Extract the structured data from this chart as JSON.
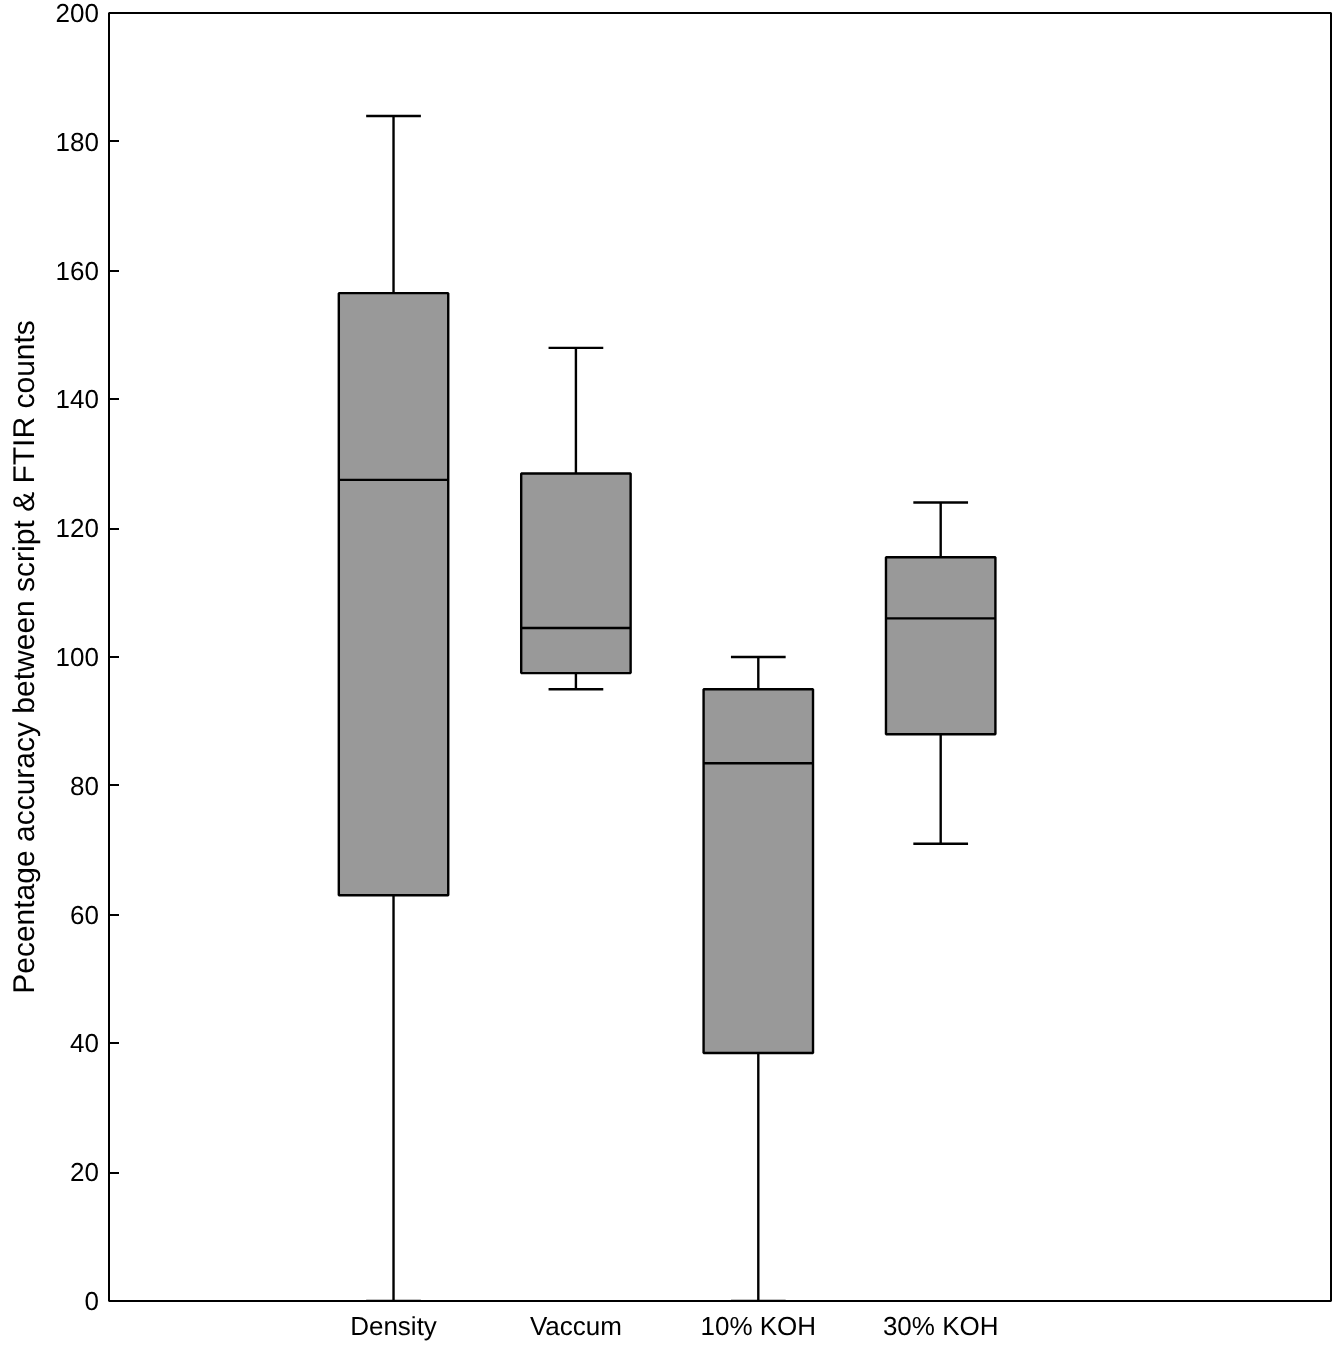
{
  "chart_data": {
    "type": "box",
    "ylabel": "Pecentage accuracy between script & FTIR counts",
    "categories": [
      "Density",
      "Vaccum",
      "10% KOH",
      "30% KOH"
    ],
    "color": "#999999",
    "ylim": [
      0,
      200
    ],
    "yticks": [
      0,
      20,
      40,
      60,
      80,
      100,
      120,
      140,
      160,
      180,
      200
    ],
    "grid": false,
    "boxes": [
      {
        "low": 0,
        "q1": 63,
        "median": 127.5,
        "q3": 156.5,
        "high": 184
      },
      {
        "low": 95,
        "q1": 97.5,
        "median": 104.5,
        "q3": 128.5,
        "high": 148
      },
      {
        "low": 0,
        "q1": 38.5,
        "median": 83.5,
        "q3": 95,
        "high": 100
      },
      {
        "low": 71,
        "q1": 88,
        "median": 106,
        "q3": 115.5,
        "high": 124
      }
    ]
  }
}
